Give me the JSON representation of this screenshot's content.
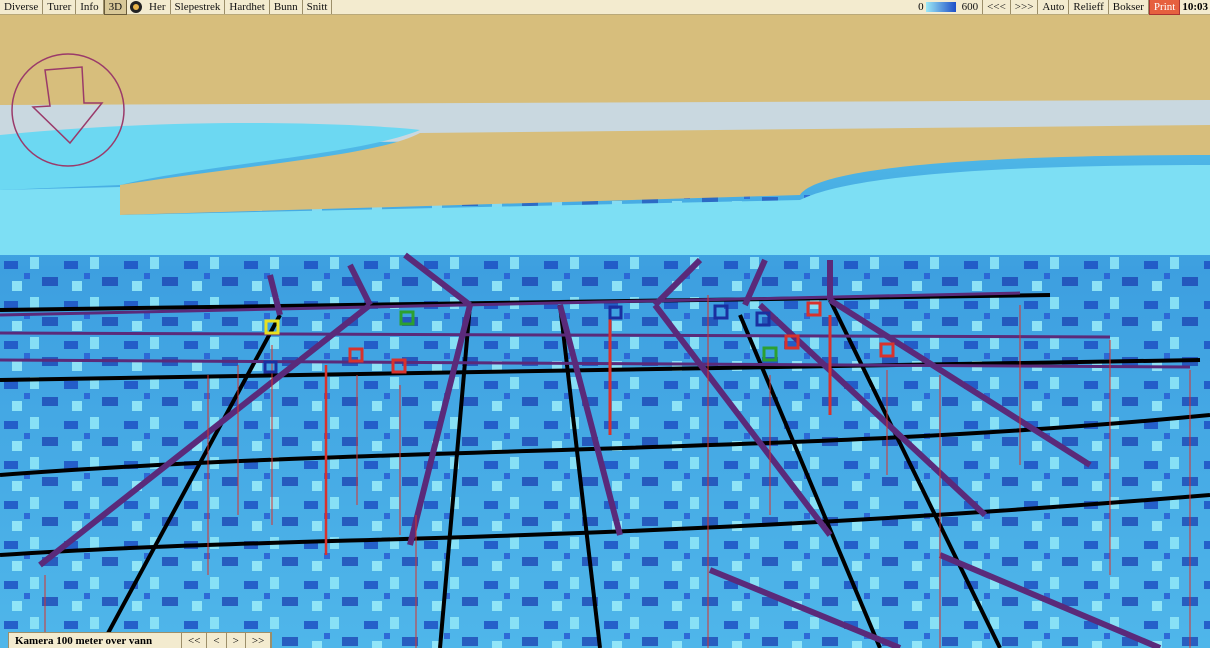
{
  "toolbar_left": [
    "Diverse",
    "Turer",
    "Info",
    "3D",
    "Her",
    "Slepestrek",
    "Hardhet",
    "Bunn",
    "Snitt"
  ],
  "scale": {
    "min": 0,
    "max": 600
  },
  "toolbar_right": [
    "<<<",
    ">>>",
    "Auto",
    "Relieff",
    "Bokser",
    "Print"
  ],
  "clock": "10:03",
  "status": {
    "camera": "Kamera 100 meter over vann",
    "buttons": [
      "<<",
      "<",
      ">",
      ">>"
    ]
  }
}
